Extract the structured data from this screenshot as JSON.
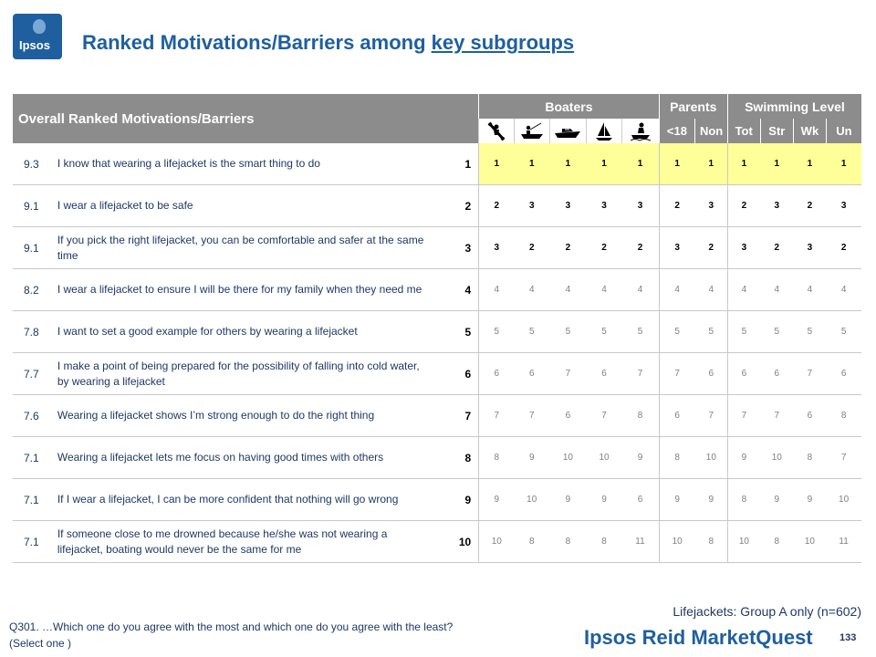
{
  "logo": {
    "text": "Ipsos"
  },
  "title": {
    "prefix": "Ranked Motivations/Barriers among ",
    "underlined": "key subgroups"
  },
  "table": {
    "header_label": "Overall Ranked Motivations/Barriers",
    "groups": [
      "Boaters",
      "Parents",
      "Swimming Level"
    ],
    "boater_icons": [
      "kayak-icon",
      "fishing-boat-icon",
      "motorboat-icon",
      "sailboat-icon",
      "jetski-icon"
    ],
    "subheaders": [
      "<18",
      "Non",
      "Tot",
      "Str",
      "Wk",
      "Un"
    ],
    "rows": [
      {
        "score": "9.3",
        "statement": "I know that wearing a lifejacket is the smart thing to do",
        "rank": "1",
        "values": [
          "1",
          "1",
          "1",
          "1",
          "1",
          "1",
          "1",
          "1",
          "1",
          "1",
          "1"
        ]
      },
      {
        "score": "9.1",
        "statement": "I wear a lifejacket to be safe",
        "rank": "2",
        "values": [
          "2",
          "3",
          "3",
          "3",
          "3",
          "2",
          "3",
          "2",
          "3",
          "2",
          "3"
        ]
      },
      {
        "score": "9.1",
        "statement": "If you pick the right lifejacket, you can be comfortable and safer at the same time",
        "rank": "3",
        "values": [
          "3",
          "2",
          "2",
          "2",
          "2",
          "3",
          "2",
          "3",
          "2",
          "3",
          "2"
        ]
      },
      {
        "score": "8.2",
        "statement": "I wear a lifejacket to ensure I will be there for my family when they need me",
        "rank": "4",
        "values": [
          "4",
          "4",
          "4",
          "4",
          "4",
          "4",
          "4",
          "4",
          "4",
          "4",
          "4"
        ]
      },
      {
        "score": "7.8",
        "statement": "I want to set a good example for others by wearing a lifejacket",
        "rank": "5",
        "values": [
          "5",
          "5",
          "5",
          "5",
          "5",
          "5",
          "5",
          "5",
          "5",
          "5",
          "5"
        ]
      },
      {
        "score": "7.7",
        "statement": "I make a point of being prepared for the possibility of falling into cold water, by wearing a lifejacket",
        "rank": "6",
        "values": [
          "6",
          "6",
          "7",
          "6",
          "7",
          "7",
          "6",
          "6",
          "6",
          "7",
          "6"
        ]
      },
      {
        "score": "7.6",
        "statement": "Wearing a lifejacket shows I’m strong enough to do the right thing",
        "rank": "7",
        "values": [
          "7",
          "7",
          "6",
          "7",
          "8",
          "6",
          "7",
          "7",
          "7",
          "6",
          "8"
        ]
      },
      {
        "score": "7.1",
        "statement": "Wearing a lifejacket lets me focus on having good times with others",
        "rank": "8",
        "values": [
          "8",
          "9",
          "10",
          "10",
          "9",
          "8",
          "10",
          "9",
          "10",
          "8",
          "7"
        ]
      },
      {
        "score": "7.1",
        "statement": "If I wear a lifejacket, I can be more confident that nothing will go wrong",
        "rank": "9",
        "values": [
          "9",
          "10",
          "9",
          "9",
          "6",
          "9",
          "9",
          "8",
          "9",
          "9",
          "10"
        ]
      },
      {
        "score": "7.1",
        "statement": "If someone close to me drowned because he/she was not wearing a lifejacket, boating would never be the same for me",
        "rank": "10",
        "values": [
          "10",
          "8",
          "8",
          "8",
          "11",
          "10",
          "8",
          "10",
          "8",
          "10",
          "11"
        ]
      }
    ]
  },
  "footnote": {
    "line1": "Q301. …Which one do you agree with the most and which one do you agree with the least?",
    "line2": "(Select one )"
  },
  "sample": "Lifejackets: Group A only (n=602)",
  "brand": "Ipsos Reid MarketQuest",
  "page_number": "133",
  "colors": {
    "header_grey": "#8c8c8c",
    "highlight": "#ffff99",
    "brand_blue": "#1f5f9f"
  }
}
